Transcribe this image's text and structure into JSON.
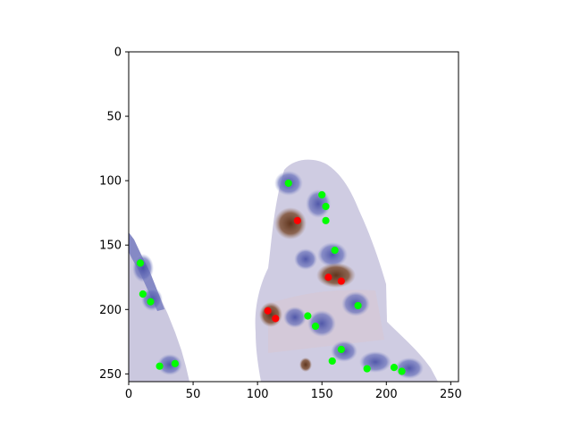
{
  "chart_data": {
    "type": "scatter",
    "title": "",
    "xlabel": "",
    "ylabel": "",
    "xlim": [
      0,
      256
    ],
    "ylim": [
      256,
      0
    ],
    "y_inverted": true,
    "grid": false,
    "background": "histology image: H&E/IHC stained tissue with purple-blue nuclei and brown positive cells",
    "x_ticks": [
      "0",
      "50",
      "100",
      "150",
      "200",
      "250"
    ],
    "y_ticks": [
      "0",
      "50",
      "100",
      "150",
      "200",
      "250"
    ],
    "colors": {
      "positive": "#ff0000",
      "negative": "#00ff00",
      "nuclei": "#5a63b0",
      "brown": "#6b3a1e",
      "tissue": "#cfcde0"
    },
    "series": [
      {
        "color": "#ff0000",
        "points": [
          [
            131,
            131
          ],
          [
            155,
            175
          ],
          [
            165,
            178
          ],
          [
            108,
            201
          ],
          [
            114,
            207
          ]
        ]
      },
      {
        "color": "#00ff00",
        "points": [
          [
            124,
            102
          ],
          [
            150,
            111
          ],
          [
            153,
            120
          ],
          [
            153,
            131
          ],
          [
            160,
            154
          ],
          [
            178,
            197
          ],
          [
            9,
            164
          ],
          [
            11,
            188
          ],
          [
            17,
            194
          ],
          [
            139,
            205
          ],
          [
            145,
            213
          ],
          [
            165,
            231
          ],
          [
            158,
            240
          ],
          [
            185,
            246
          ],
          [
            206,
            245
          ],
          [
            212,
            248
          ],
          [
            24,
            244
          ],
          [
            36,
            242
          ]
        ]
      }
    ]
  }
}
